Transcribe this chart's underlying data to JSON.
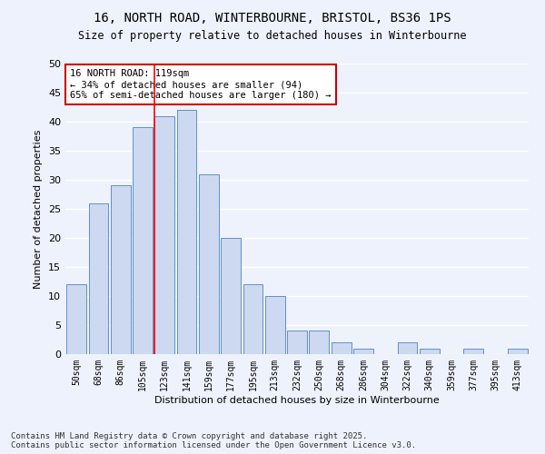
{
  "title1": "16, NORTH ROAD, WINTERBOURNE, BRISTOL, BS36 1PS",
  "title2": "Size of property relative to detached houses in Winterbourne",
  "xlabel": "Distribution of detached houses by size in Winterbourne",
  "ylabel": "Number of detached properties",
  "categories": [
    "50sqm",
    "68sqm",
    "86sqm",
    "105sqm",
    "123sqm",
    "141sqm",
    "159sqm",
    "177sqm",
    "195sqm",
    "213sqm",
    "232sqm",
    "250sqm",
    "268sqm",
    "286sqm",
    "304sqm",
    "322sqm",
    "340sqm",
    "359sqm",
    "377sqm",
    "395sqm",
    "413sqm"
  ],
  "values": [
    12,
    26,
    29,
    39,
    41,
    42,
    31,
    20,
    12,
    10,
    4,
    4,
    2,
    1,
    0,
    2,
    1,
    0,
    1,
    0,
    1
  ],
  "bar_color": "#ccd9f0",
  "bar_edge_color": "#6090c8",
  "ylim": [
    0,
    50
  ],
  "yticks": [
    0,
    5,
    10,
    15,
    20,
    25,
    30,
    35,
    40,
    45,
    50
  ],
  "red_line_index": 4,
  "annotation_text": "16 NORTH ROAD: 119sqm\n← 34% of detached houses are smaller (94)\n65% of semi-detached houses are larger (180) →",
  "annotation_box_color": "#ffffff",
  "annotation_box_edge": "#cc0000",
  "footer1": "Contains HM Land Registry data © Crown copyright and database right 2025.",
  "footer2": "Contains public sector information licensed under the Open Government Licence v3.0.",
  "background_color": "#eef2fc",
  "grid_color": "#ffffff"
}
